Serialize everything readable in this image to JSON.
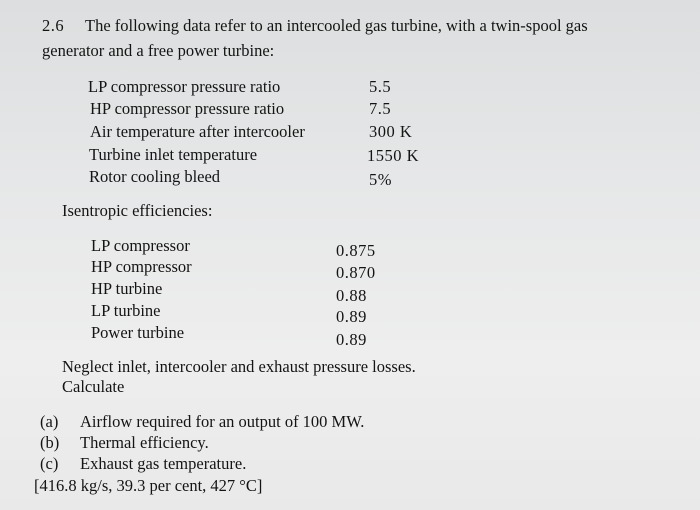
{
  "problem": {
    "number": "2.6",
    "intro_line1": "The following data refer to an intercooled gas turbine, with a twin-spool gas",
    "intro_line2": "generator and a free power turbine:",
    "parameters": [
      {
        "label": "LP compressor pressure ratio",
        "value": "5.5"
      },
      {
        "label": "HP compressor pressure ratio",
        "value": "7.5"
      },
      {
        "label": "Air temperature after intercooler",
        "value": "300 K"
      },
      {
        "label": "Turbine inlet temperature",
        "value": "1550 K"
      },
      {
        "label": "Rotor cooling bleed",
        "value": "5%"
      }
    ],
    "efficiencies_heading": "Isentropic efficiencies:",
    "efficiencies": [
      {
        "label": "LP compressor",
        "value": "0.875"
      },
      {
        "label": "HP compressor",
        "value": "0.870"
      },
      {
        "label": "HP turbine",
        "value": "0.88"
      },
      {
        "label": "LP turbine",
        "value": "0.89"
      },
      {
        "label": "Power turbine",
        "value": "0.89"
      }
    ],
    "neglect_note": "Neglect inlet, intercooler and exhaust pressure losses.",
    "calculate_heading": "Calculate",
    "questions": [
      {
        "marker": "(a)",
        "text": "Airflow required for an output of 100 MW."
      },
      {
        "marker": "(b)",
        "text": "Thermal efficiency."
      },
      {
        "marker": "(c)",
        "text": "Exhaust gas temperature."
      }
    ],
    "answers": "[416.8 kg/s, 39.3 per cent, 427 °C]"
  }
}
